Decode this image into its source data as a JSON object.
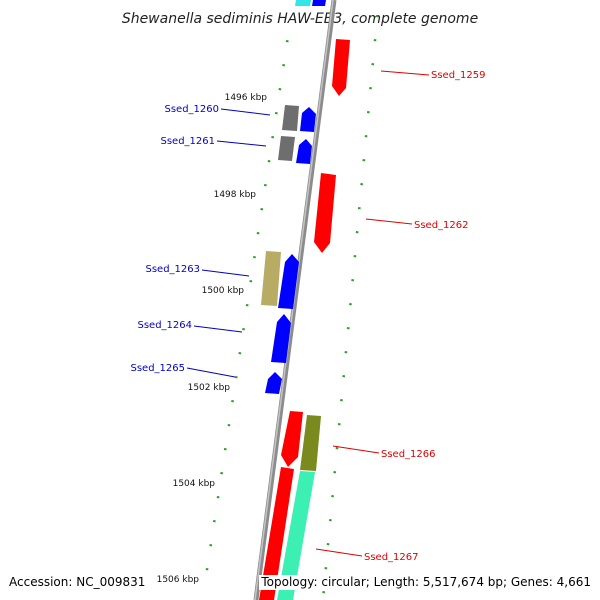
{
  "title": "Shewanella sediminis HAW-EB3, complete genome",
  "accession": "Accession: NC_009831",
  "topology": "Topology: circular; Length: 5,517,674 bp; Genes: 4,661",
  "colors": {
    "backbone": "#8c8c8c",
    "tick": "#2e9e2e",
    "negative_strand_label": "#e00000",
    "positive_strand_label": "#0000c8",
    "red_gene": "#ff0000",
    "blue_gene": "#0000ff",
    "gray_gene": "#6e6e6e",
    "khaki_gene": "#b8ac64",
    "olive_gene": "#7a8a1e",
    "aqua_gene": "#3cf0b4",
    "cyan_gene": "#33e6e6"
  },
  "scale_labels": [
    "1496 kbp",
    "1498 kbp",
    "1500 kbp",
    "1502 kbp",
    "1504 kbp",
    "1506 kbp"
  ],
  "genes": [
    {
      "name": "Ssed_1259",
      "strand": "negative"
    },
    {
      "name": "Ssed_1260",
      "strand": "positive"
    },
    {
      "name": "Ssed_1261",
      "strand": "positive"
    },
    {
      "name": "Ssed_1262",
      "strand": "negative"
    },
    {
      "name": "Ssed_1263",
      "strand": "positive"
    },
    {
      "name": "Ssed_1264",
      "strand": "positive"
    },
    {
      "name": "Ssed_1265",
      "strand": "positive"
    },
    {
      "name": "Ssed_1266",
      "strand": "negative"
    },
    {
      "name": "Ssed_1267",
      "strand": "negative"
    }
  ]
}
